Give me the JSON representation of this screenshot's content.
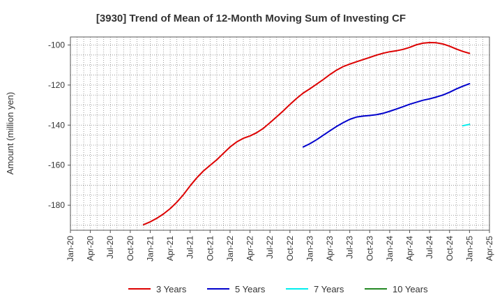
{
  "chart_data": {
    "type": "line",
    "title": "[3930]  Trend of Mean of 12-Month Moving Sum of Investing CF",
    "xlabel": "",
    "ylabel": "Amount (million yen)",
    "x_ticks": [
      "Jan-20",
      "Apr-20",
      "Jul-20",
      "Oct-20",
      "Jan-21",
      "Apr-21",
      "Jul-21",
      "Oct-21",
      "Jan-22",
      "Apr-22",
      "Jul-22",
      "Oct-22",
      "Jan-23",
      "Apr-23",
      "Jul-23",
      "Oct-23",
      "Jan-24",
      "Apr-24",
      "Jul-24",
      "Oct-24",
      "Jan-25",
      "Apr-25"
    ],
    "y_ticks": [
      -100,
      -120,
      -140,
      -160,
      -180
    ],
    "ylim": [
      -192.5,
      -96
    ],
    "grid": true,
    "legend_position": "bottom",
    "series": [
      {
        "name": "3 Years",
        "color": "#dd0000",
        "x": [
          "2020-12",
          "2021-01",
          "2021-02",
          "2021-03",
          "2021-04",
          "2021-05",
          "2021-06",
          "2021-07",
          "2021-08",
          "2021-09",
          "2021-10",
          "2021-11",
          "2021-12",
          "2022-01",
          "2022-02",
          "2022-03",
          "2022-04",
          "2022-05",
          "2022-06",
          "2022-07",
          "2022-08",
          "2022-09",
          "2022-10",
          "2022-11",
          "2022-12",
          "2023-01",
          "2023-02",
          "2023-03",
          "2023-04",
          "2023-05",
          "2023-06",
          "2023-07",
          "2023-08",
          "2023-09",
          "2023-10",
          "2023-11",
          "2023-12",
          "2024-01",
          "2024-02",
          "2024-03",
          "2024-04",
          "2024-05",
          "2024-06",
          "2024-07",
          "2024-08",
          "2024-09",
          "2024-10",
          "2024-11",
          "2024-12",
          "2025-01"
        ],
        "values": [
          -189.7,
          -188.3,
          -186.5,
          -184.3,
          -181.7,
          -178.5,
          -174.7,
          -170.3,
          -166.3,
          -162.9,
          -160.1,
          -157.3,
          -154.1,
          -150.9,
          -148.4,
          -146.6,
          -145.4,
          -143.8,
          -141.6,
          -138.8,
          -135.9,
          -132.9,
          -129.7,
          -126.7,
          -124.0,
          -121.9,
          -119.6,
          -117.3,
          -114.8,
          -112.6,
          -110.8,
          -109.5,
          -108.4,
          -107.3,
          -106.2,
          -105.1,
          -104.1,
          -103.4,
          -102.9,
          -102.2,
          -101.2,
          -99.9,
          -99.1,
          -98.8,
          -98.9,
          -99.5,
          -100.6,
          -102.0,
          -103.2,
          -104.2
        ]
      },
      {
        "name": "5 Years",
        "color": "#0000cc",
        "x": [
          "2022-12",
          "2023-01",
          "2023-02",
          "2023-03",
          "2023-04",
          "2023-05",
          "2023-06",
          "2023-07",
          "2023-08",
          "2023-09",
          "2023-10",
          "2023-11",
          "2023-12",
          "2024-01",
          "2024-02",
          "2024-03",
          "2024-04",
          "2024-05",
          "2024-06",
          "2024-07",
          "2024-08",
          "2024-09",
          "2024-10",
          "2024-11",
          "2024-12",
          "2025-01"
        ],
        "values": [
          -150.9,
          -149.3,
          -147.3,
          -145.1,
          -142.9,
          -140.7,
          -138.8,
          -137.1,
          -136.0,
          -135.5,
          -135.2,
          -134.8,
          -134.1,
          -133.1,
          -132.0,
          -130.8,
          -129.6,
          -128.6,
          -127.6,
          -126.9,
          -126.0,
          -125.0,
          -123.6,
          -122.0,
          -120.6,
          -119.3
        ]
      },
      {
        "name": "7 Years",
        "color": "#00eeee",
        "x": [
          "2024-12",
          "2025-01"
        ],
        "values": [
          -140.3,
          -139.6
        ]
      },
      {
        "name": "10 Years",
        "color": "#228822",
        "x": [],
        "values": []
      }
    ]
  }
}
